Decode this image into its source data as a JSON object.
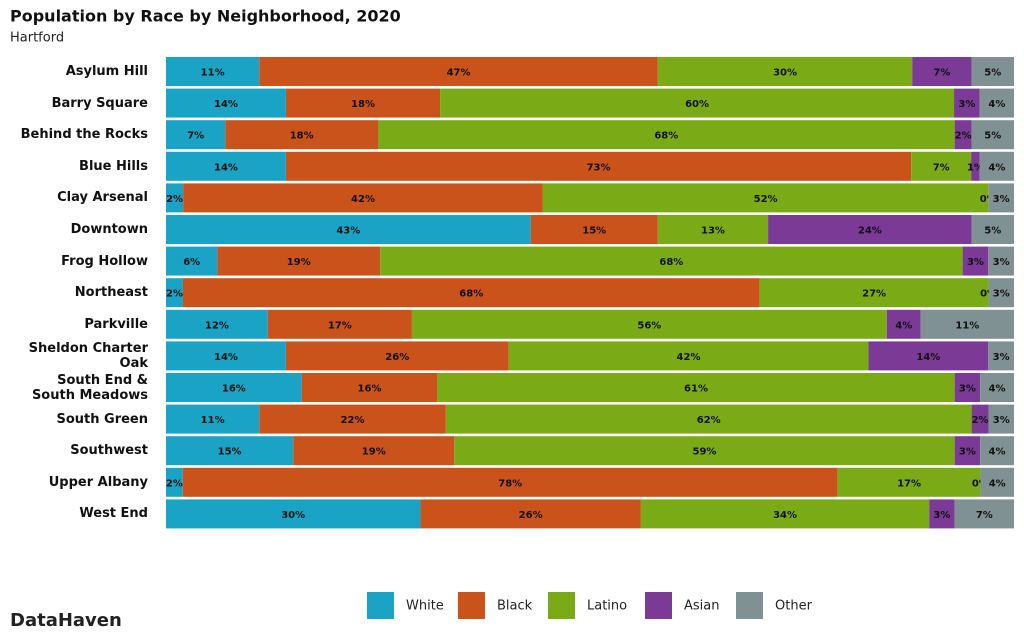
{
  "chart_data": {
    "type": "stacked-bar-horizontal-100",
    "title": "Population by Race by Neighborhood, 2020",
    "subtitle": "Hartford",
    "source": "DataHaven",
    "legend": "bottom",
    "categories": [
      "Asylum Hill",
      "Barry Square",
      "Behind the Rocks",
      "Blue Hills",
      "Clay Arsenal",
      "Downtown",
      "Frog Hollow",
      "Northeast",
      "Parkville",
      "Sheldon Charter Oak",
      "South End & South Meadows",
      "South Green",
      "Southwest",
      "Upper Albany",
      "West End"
    ],
    "series": [
      {
        "name": "White",
        "color": "#1aa3c4",
        "values": [
          11,
          14,
          7,
          14,
          2,
          43,
          6,
          2,
          12,
          14,
          16,
          11,
          15,
          2,
          30
        ],
        "value_labels": [
          "11%",
          "14%",
          "7%",
          "14%",
          "2%",
          "43%",
          "6%",
          "2%",
          "12%",
          "14%",
          "16%",
          "11%",
          "15%",
          "2%",
          "30%"
        ]
      },
      {
        "name": "Black",
        "color": "#c9531a",
        "values": [
          47,
          18,
          18,
          73,
          42,
          15,
          19,
          68,
          17,
          26,
          16,
          22,
          19,
          78,
          26
        ],
        "value_labels": [
          "47%",
          "18%",
          "18%",
          "73%",
          "42%",
          "15%",
          "19%",
          "68%",
          "17%",
          "26%",
          "16%",
          "22%",
          "19%",
          "78%",
          "26%"
        ]
      },
      {
        "name": "Latino",
        "color": "#7aab17",
        "values": [
          30,
          60,
          68,
          7,
          52,
          13,
          68,
          27,
          56,
          42,
          61,
          62,
          59,
          17,
          34
        ],
        "value_labels": [
          "30%",
          "60%",
          "68%",
          "7%",
          "52%",
          "13%",
          "68%",
          "27%",
          "56%",
          "42%",
          "61%",
          "62%",
          "59%",
          "17%",
          "34%"
        ]
      },
      {
        "name": "Asian",
        "color": "#7b3a96",
        "values": [
          7,
          3,
          2,
          1,
          0,
          24,
          3,
          0,
          4,
          14,
          3,
          2,
          3,
          0,
          3
        ],
        "value_labels": [
          "7%",
          "3%",
          "2%",
          "1%",
          "0%",
          "24%",
          "3%",
          "0%",
          "4%",
          "14%",
          "3%",
          "2%",
          "3%",
          "0%",
          "3%"
        ]
      },
      {
        "name": "Other",
        "color": "#7f9192",
        "values": [
          5,
          4,
          5,
          4,
          3,
          5,
          3,
          3,
          11,
          3,
          4,
          3,
          4,
          4,
          7
        ],
        "value_labels": [
          "5%",
          "4%",
          "5%",
          "4%",
          "3%",
          "5%",
          "3%",
          "3%",
          "11%",
          "3%",
          "4%",
          "3%",
          "4%",
          "4%",
          "7%"
        ]
      }
    ]
  }
}
